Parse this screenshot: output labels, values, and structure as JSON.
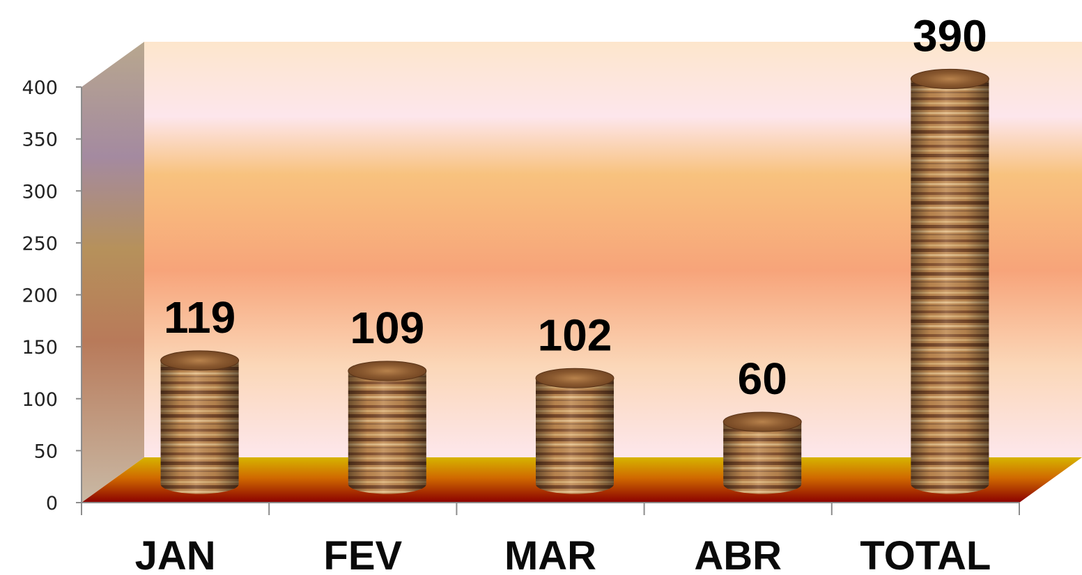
{
  "chart_data": {
    "type": "bar",
    "style": "3d-cylinder",
    "categories": [
      "JAN",
      "FEV",
      "MAR",
      "ABR",
      "TOTAL"
    ],
    "values": [
      119,
      109,
      102,
      60,
      390
    ],
    "data_labels": [
      "119",
      "109",
      "102",
      "60",
      "390"
    ],
    "yticks": [
      "0",
      "50",
      "100",
      "150",
      "200",
      "250",
      "300",
      "350",
      "400"
    ],
    "ylim": [
      0,
      400
    ],
    "title": "",
    "xlabel": "",
    "ylabel": "",
    "grid": false,
    "legend": "none",
    "colors": {
      "bar": "#b07a45",
      "floor_front": "#8b0000",
      "floor_back": "#d4b000",
      "wall_top": "#fde8e4",
      "wall_mid": "#f8b87a",
      "side_wall": "#b89a78"
    }
  }
}
